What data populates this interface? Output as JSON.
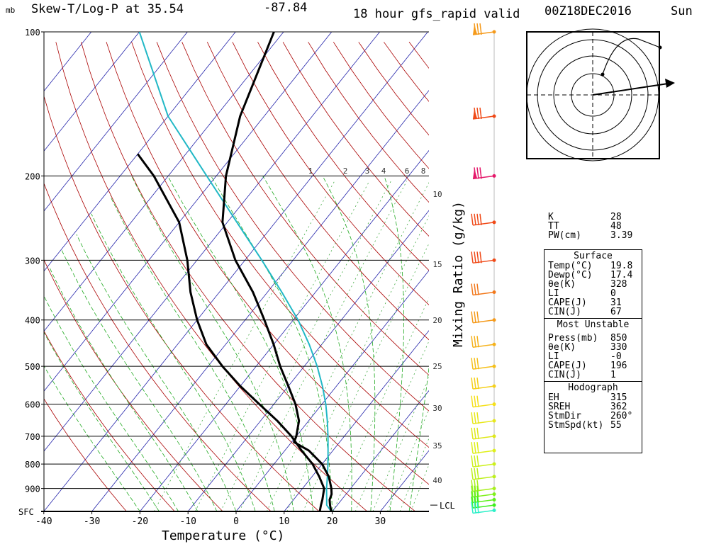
{
  "header": {
    "unit": "mb",
    "title": "Skew-T/Log-P at 35.54",
    "longitude": "-87.84",
    "valid_text": "18 hour gfs_rapid valid",
    "datetime": "00Z18DEC2016",
    "day": "Sun"
  },
  "chart_data": {
    "type": "skew-t",
    "xlabel": "Temperature (°C)",
    "right_label": "Mixing Ratio (g/kg)",
    "temperature_ticks": [
      -40,
      -30,
      -20,
      -10,
      0,
      10,
      20,
      30
    ],
    "pressure_levels": [
      {
        "p": 100,
        "label": "100"
      },
      {
        "p": 200,
        "label": "200"
      },
      {
        "p": 300,
        "label": "300"
      },
      {
        "p": 400,
        "label": "400"
      },
      {
        "p": 500,
        "label": "500"
      },
      {
        "p": 600,
        "label": "600"
      },
      {
        "p": 700,
        "label": "700"
      },
      {
        "p": 800,
        "label": "800"
      },
      {
        "p": 900,
        "label": "900"
      },
      {
        "p": 1005,
        "label": "SFC"
      }
    ],
    "mixing_ratio_labels": [
      "1",
      "2",
      "3",
      "4",
      "6",
      "8",
      "10",
      "15",
      "20",
      "25",
      "30",
      "35",
      "40"
    ],
    "lcl_label": "LCL",
    "lcl_pressure": 975,
    "temperature_profile": [
      {
        "p": 1005,
        "t": 19.8
      },
      {
        "p": 975,
        "t": 18.5
      },
      {
        "p": 950,
        "t": 17.5
      },
      {
        "p": 925,
        "t": 17.0
      },
      {
        "p": 900,
        "t": 16.0
      },
      {
        "p": 850,
        "t": 13.5
      },
      {
        "p": 800,
        "t": 10.0
      },
      {
        "p": 750,
        "t": 5.0
      },
      {
        "p": 720,
        "t": 0.5
      },
      {
        "p": 700,
        "t": 0.0
      },
      {
        "p": 650,
        "t": -2.0
      },
      {
        "p": 600,
        "t": -5.5
      },
      {
        "p": 550,
        "t": -10.0
      },
      {
        "p": 500,
        "t": -15.0
      },
      {
        "p": 450,
        "t": -20.0
      },
      {
        "p": 400,
        "t": -26.0
      },
      {
        "p": 350,
        "t": -33.0
      },
      {
        "p": 300,
        "t": -42.0
      },
      {
        "p": 250,
        "t": -51.0
      },
      {
        "p": 200,
        "t": -58.0
      },
      {
        "p": 150,
        "t": -65.0
      },
      {
        "p": 100,
        "t": -72.0
      }
    ],
    "dewpoint_profile": [
      {
        "p": 1005,
        "t": 17.4
      },
      {
        "p": 975,
        "t": 16.6
      },
      {
        "p": 950,
        "t": 16.0
      },
      {
        "p": 900,
        "t": 14.5
      },
      {
        "p": 850,
        "t": 11.5
      },
      {
        "p": 800,
        "t": 8.0
      },
      {
        "p": 750,
        "t": 3.5
      },
      {
        "p": 700,
        "t": -1.0
      },
      {
        "p": 650,
        "t": -6.5
      },
      {
        "p": 600,
        "t": -13.0
      },
      {
        "p": 550,
        "t": -20.0
      },
      {
        "p": 500,
        "t": -27.0
      },
      {
        "p": 450,
        "t": -34.0
      },
      {
        "p": 400,
        "t": -40.0
      },
      {
        "p": 350,
        "t": -46.0
      },
      {
        "p": 300,
        "t": -52.0
      },
      {
        "p": 250,
        "t": -60.0
      },
      {
        "p": 200,
        "t": -73.0
      },
      {
        "p": 180,
        "t": -80.0
      }
    ],
    "parcel_profile": [
      {
        "p": 1005,
        "t": 19.8
      },
      {
        "p": 975,
        "t": 17.8
      },
      {
        "p": 950,
        "t": 16.9
      },
      {
        "p": 900,
        "t": 15.0
      },
      {
        "p": 850,
        "t": 13.2
      },
      {
        "p": 800,
        "t": 11.2
      },
      {
        "p": 750,
        "t": 9.0
      },
      {
        "p": 700,
        "t": 6.6
      },
      {
        "p": 650,
        "t": 3.9
      },
      {
        "p": 600,
        "t": 0.8
      },
      {
        "p": 550,
        "t": -2.9
      },
      {
        "p": 500,
        "t": -7.3
      },
      {
        "p": 450,
        "t": -12.6
      },
      {
        "p": 400,
        "t": -19.0
      },
      {
        "p": 350,
        "t": -27.0
      },
      {
        "p": 300,
        "t": -36.5
      },
      {
        "p": 250,
        "t": -48.0
      },
      {
        "p": 200,
        "t": -62.0
      },
      {
        "p": 150,
        "t": -80.0
      },
      {
        "p": 100,
        "t": -100.0
      }
    ],
    "wind_barb_levels": [
      100,
      150,
      200,
      250,
      300,
      350,
      400,
      450,
      500,
      550,
      600,
      650,
      700,
      750,
      800,
      850,
      900,
      925,
      950,
      975,
      1000
    ],
    "wind_barb_colors": [
      "#f59a1b",
      "#f04a18",
      "#e5186a",
      "#f04a18",
      "#f04a18",
      "#f2781b",
      "#f59a1b",
      "#f5b21c",
      "#f5c01c",
      "#f5d01c",
      "#f5e01c",
      "#e8e81c",
      "#dfe81c",
      "#dff01c",
      "#cdf01c",
      "#bdf01c",
      "#a8f01c",
      "#7ff01c",
      "#5cf01c",
      "#3cf01c",
      "#2cf0c8"
    ],
    "colors": {
      "temperature": "#000000",
      "dewpoint": "#000000",
      "parcel": "#22b8c6",
      "isotherm": "#2222aa",
      "dry_adiabat": "#aa0000",
      "moist_adiabat": "#22aa22",
      "mixing_ratio": "#44aa44"
    }
  },
  "hodograph": {
    "rings": 4,
    "arrow": "storm-motion"
  },
  "indices": {
    "top": [
      {
        "label": "K",
        "value": "28"
      },
      {
        "label": "TT",
        "value": "48"
      },
      {
        "label": "PW(cm)",
        "value": "3.39"
      }
    ],
    "surface_title": "Surface",
    "surface": [
      {
        "label": "Temp(°C)",
        "value": "19.8"
      },
      {
        "label": "Dewp(°C)",
        "value": "17.4"
      },
      {
        "label": "θe(K)",
        "value": "328"
      },
      {
        "label": "LI",
        "value": "0"
      },
      {
        "label": "CAPE(J)",
        "value": "31"
      },
      {
        "label": "CIN(J)",
        "value": "67"
      }
    ],
    "mu_title": "Most Unstable",
    "mu": [
      {
        "label": "Press(mb)",
        "value": "850"
      },
      {
        "label": "θe(K)",
        "value": "330"
      },
      {
        "label": "LI",
        "value": "-0"
      },
      {
        "label": "CAPE(J)",
        "value": "196"
      },
      {
        "label": "CIN(J)",
        "value": "1"
      }
    ],
    "hodo_title": "Hodograph",
    "hodo": [
      {
        "label": "EH",
        "value": "315"
      },
      {
        "label": "SREH",
        "value": "362"
      },
      {
        "label": "StmDir",
        "value": "260°"
      },
      {
        "label": "StmSpd(kt)",
        "value": "55"
      }
    ]
  }
}
